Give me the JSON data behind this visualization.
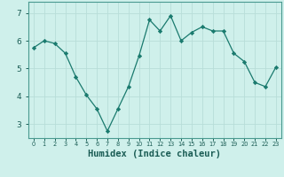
{
  "x": [
    0,
    1,
    2,
    3,
    4,
    5,
    6,
    7,
    8,
    9,
    10,
    11,
    12,
    13,
    14,
    15,
    16,
    17,
    18,
    19,
    20,
    21,
    22,
    23
  ],
  "y": [
    5.75,
    6.0,
    5.9,
    5.55,
    4.7,
    4.05,
    3.55,
    2.75,
    3.55,
    4.35,
    5.45,
    6.75,
    6.35,
    6.9,
    6.0,
    6.3,
    6.5,
    6.35,
    6.35,
    5.55,
    5.25,
    4.5,
    4.35,
    5.05
  ],
  "line_color": "#1a7a6e",
  "marker": "D",
  "marker_size": 2.2,
  "bg_color": "#cff0eb",
  "grid_color": "#b8ddd8",
  "tick_color": "#1a5c54",
  "border_color": "#4a9a90",
  "xlabel": "Humidex (Indice chaleur)",
  "xlabel_fontsize": 7.5,
  "ylabel_ticks": [
    3,
    4,
    5,
    6,
    7
  ],
  "xlim": [
    -0.5,
    23.5
  ],
  "ylim": [
    2.5,
    7.4
  ],
  "xtick_labels": [
    "0",
    "1",
    "2",
    "3",
    "4",
    "5",
    "6",
    "7",
    "8",
    "9",
    "10",
    "11",
    "12",
    "13",
    "14",
    "15",
    "16",
    "17",
    "18",
    "19",
    "20",
    "21",
    "22",
    "23"
  ]
}
